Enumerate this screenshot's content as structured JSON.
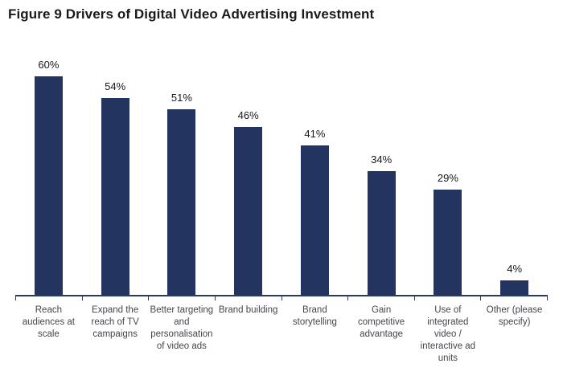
{
  "figure": {
    "title": "Figure 9 Drivers of Digital Video Advertising Investment"
  },
  "colors": {
    "bar": "#22345f",
    "axis": "#2c3a5f",
    "title_text": "#1a1a1a",
    "category_text": "#45454d",
    "value_text": "#16161e",
    "background": "#ffffff"
  },
  "chart_data": {
    "type": "bar",
    "title": "Figure 9 Drivers of Digital Video Advertising Investment",
    "categories": [
      "Reach audiences at scale",
      "Expand the reach of TV campaigns",
      "Better targeting and personalisation of video ads",
      "Brand building",
      "Brand storytelling",
      "Gain competitive advantage",
      "Use of integrated video / interactive ad units",
      "Other (please specify)"
    ],
    "category_lines": [
      [
        "Reach",
        "audiences at",
        "scale"
      ],
      [
        "Expand the",
        "reach of TV",
        "campaigns"
      ],
      [
        "Better targeting",
        "and",
        "personalisation",
        "of video ads"
      ],
      [
        "Brand building"
      ],
      [
        "Brand",
        "storytelling"
      ],
      [
        "Gain",
        "competitive",
        "advantage"
      ],
      [
        "Use of",
        "integrated",
        "video /",
        "interactive ad",
        "units"
      ],
      [
        "Other (please",
        "specify)"
      ]
    ],
    "values": [
      60,
      54,
      51,
      46,
      41,
      34,
      29,
      4
    ],
    "value_labels": [
      "60%",
      "54%",
      "51%",
      "46%",
      "41%",
      "34%",
      "29%",
      "4%"
    ],
    "xlabel": "",
    "ylabel": "",
    "ylim": [
      0,
      65
    ],
    "grid": false,
    "legend": false,
    "bar_color": "#22345f",
    "orientation": "vertical"
  }
}
